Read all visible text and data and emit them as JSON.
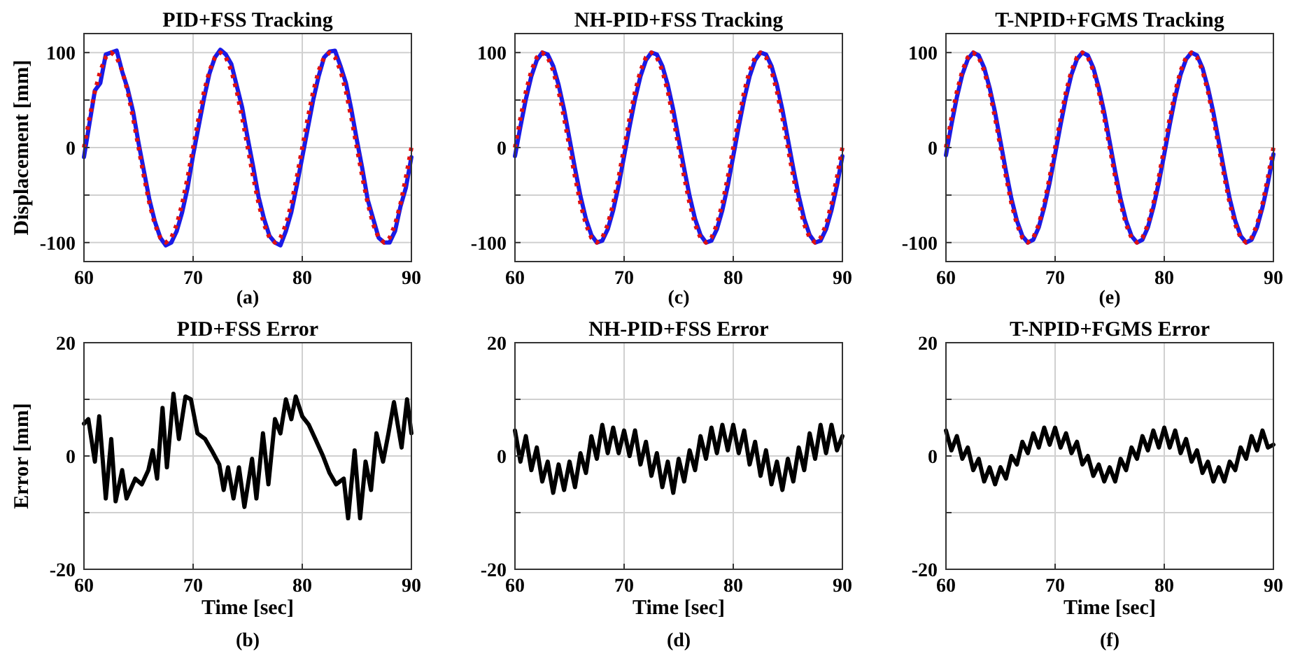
{
  "chart_data": [
    {
      "type": "line",
      "title": "PID+FSS Tracking",
      "ylabel": "Displacement [mm]",
      "annotations": [
        "(a)"
      ],
      "xlim": [
        60,
        90
      ],
      "xticks": [
        60,
        70,
        80,
        90
      ],
      "ylim": [
        -120,
        120
      ],
      "yticks": [
        -100,
        {
          "value": -50,
          "label": null
        },
        0,
        {
          "value": 50,
          "label": null
        },
        100
      ],
      "grid": true,
      "x": [
        60,
        60.5,
        61,
        61.5,
        62,
        62.5,
        63,
        63.5,
        64,
        64.5,
        65,
        65.5,
        66,
        66.5,
        67,
        67.5,
        68,
        68.5,
        69,
        69.5,
        70,
        70.5,
        71,
        71.5,
        72,
        72.5,
        73,
        73.5,
        74,
        74.5,
        75,
        75.5,
        76,
        76.5,
        77,
        77.5,
        78,
        78.5,
        79,
        79.5,
        80,
        80.5,
        81,
        81.5,
        82,
        82.5,
        83,
        83.5,
        84,
        84.5,
        85,
        85.5,
        86,
        86.5,
        87,
        87.5,
        88,
        88.5,
        89,
        89.5,
        90
      ],
      "series": [
        {
          "color": "#e01010",
          "line_style": "dotted",
          "values": [
            0,
            31,
            59,
            81,
            95,
            100,
            95,
            81,
            59,
            31,
            0,
            -31,
            -59,
            -81,
            -95,
            -100,
            -95,
            -81,
            -59,
            -31,
            0,
            31,
            59,
            81,
            95,
            100,
            95,
            81,
            59,
            31,
            0,
            -31,
            -59,
            -81,
            -95,
            -100,
            -95,
            -81,
            -59,
            -31,
            0,
            31,
            59,
            81,
            95,
            100,
            95,
            81,
            59,
            31,
            0,
            -31,
            -59,
            -81,
            -95,
            -100,
            -95,
            -81,
            -59,
            -31,
            0
          ]
        },
        {
          "color": "#1a1ae6",
          "line_style": "solid",
          "values": [
            -10,
            25,
            60,
            68,
            98,
            100,
            102,
            80,
            62,
            38,
            5,
            -25,
            -55,
            -78,
            -95,
            -103,
            -100,
            -88,
            -68,
            -42,
            -8,
            22,
            52,
            78,
            95,
            103,
            98,
            88,
            65,
            42,
            10,
            -20,
            -52,
            -75,
            -93,
            -100,
            -103,
            -88,
            -68,
            -40,
            -10,
            20,
            50,
            75,
            95,
            101,
            102,
            86,
            68,
            40,
            8,
            -22,
            -55,
            -75,
            -95,
            -100,
            -100,
            -88,
            -62,
            -42,
            -10
          ]
        }
      ]
    },
    {
      "type": "line",
      "title": "NH-PID+FSS Tracking",
      "annotations": [
        "(c)"
      ],
      "xlim": [
        60,
        90
      ],
      "xticks": [
        60,
        70,
        80,
        90
      ],
      "ylim": [
        -120,
        120
      ],
      "yticks": [
        -100,
        {
          "value": -50,
          "label": null
        },
        0,
        {
          "value": 50,
          "label": null
        },
        100
      ],
      "grid": true,
      "x": [
        60,
        60.5,
        61,
        61.5,
        62,
        62.5,
        63,
        63.5,
        64,
        64.5,
        65,
        65.5,
        66,
        66.5,
        67,
        67.5,
        68,
        68.5,
        69,
        69.5,
        70,
        70.5,
        71,
        71.5,
        72,
        72.5,
        73,
        73.5,
        74,
        74.5,
        75,
        75.5,
        76,
        76.5,
        77,
        77.5,
        78,
        78.5,
        79,
        79.5,
        80,
        80.5,
        81,
        81.5,
        82,
        82.5,
        83,
        83.5,
        84,
        84.5,
        85,
        85.5,
        86,
        86.5,
        87,
        87.5,
        88,
        88.5,
        89,
        89.5,
        90
      ],
      "series": [
        {
          "color": "#e01010",
          "line_style": "dotted",
          "values": [
            0,
            31,
            59,
            81,
            95,
            100,
            95,
            81,
            59,
            31,
            0,
            -31,
            -59,
            -81,
            -95,
            -100,
            -95,
            -81,
            -59,
            -31,
            0,
            31,
            59,
            81,
            95,
            100,
            95,
            81,
            59,
            31,
            0,
            -31,
            -59,
            -81,
            -95,
            -100,
            -95,
            -81,
            -59,
            -31,
            0,
            31,
            59,
            81,
            95,
            100,
            95,
            81,
            59,
            31,
            0,
            -31,
            -59,
            -81,
            -95,
            -100,
            -95,
            -81,
            -59,
            -31,
            0
          ]
        },
        {
          "color": "#1a1ae6",
          "line_style": "solid",
          "values": [
            -9,
            22,
            51,
            75,
            92,
            100,
            98,
            86,
            66,
            40,
            9,
            -22,
            -51,
            -75,
            -92,
            -100,
            -98,
            -86,
            -66,
            -40,
            -9,
            22,
            51,
            75,
            92,
            100,
            98,
            86,
            66,
            40,
            9,
            -22,
            -51,
            -75,
            -92,
            -100,
            -98,
            -86,
            -66,
            -40,
            -9,
            22,
            51,
            75,
            92,
            100,
            98,
            86,
            66,
            40,
            9,
            -22,
            -51,
            -75,
            -92,
            -100,
            -98,
            -86,
            -66,
            -40,
            -9
          ]
        }
      ]
    },
    {
      "type": "line",
      "title": "T-NPID+FGMS Tracking",
      "annotations": [
        "(e)"
      ],
      "xlim": [
        60,
        90
      ],
      "xticks": [
        60,
        70,
        80,
        90
      ],
      "ylim": [
        -120,
        120
      ],
      "yticks": [
        -100,
        {
          "value": -50,
          "label": null
        },
        0,
        {
          "value": 50,
          "label": null
        },
        100
      ],
      "grid": true,
      "x": [
        60,
        60.5,
        61,
        61.5,
        62,
        62.5,
        63,
        63.5,
        64,
        64.5,
        65,
        65.5,
        66,
        66.5,
        67,
        67.5,
        68,
        68.5,
        69,
        69.5,
        70,
        70.5,
        71,
        71.5,
        72,
        72.5,
        73,
        73.5,
        74,
        74.5,
        75,
        75.5,
        76,
        76.5,
        77,
        77.5,
        78,
        78.5,
        79,
        79.5,
        80,
        80.5,
        81,
        81.5,
        82,
        82.5,
        83,
        83.5,
        84,
        84.5,
        85,
        85.5,
        86,
        86.5,
        87,
        87.5,
        88,
        88.5,
        89,
        89.5,
        90
      ],
      "series": [
        {
          "color": "#e01010",
          "line_style": "dotted",
          "values": [
            0,
            31,
            59,
            81,
            95,
            100,
            95,
            81,
            59,
            31,
            0,
            -31,
            -59,
            -81,
            -95,
            -100,
            -95,
            -81,
            -59,
            -31,
            0,
            31,
            59,
            81,
            95,
            100,
            95,
            81,
            59,
            31,
            0,
            -31,
            -59,
            -81,
            -95,
            -100,
            -95,
            -81,
            -59,
            -31,
            0,
            31,
            59,
            81,
            95,
            100,
            95,
            81,
            59,
            31,
            0,
            -31,
            -59,
            -81,
            -95,
            -100,
            -95,
            -81,
            -59,
            -31,
            0
          ]
        },
        {
          "color": "#1a1ae6",
          "line_style": "solid",
          "values": [
            -8,
            24,
            53,
            77,
            93,
            100,
            97,
            84,
            63,
            37,
            6,
            -25,
            -54,
            -77,
            -93,
            -100,
            -97,
            -84,
            -63,
            -37,
            -7,
            24,
            53,
            77,
            93,
            100,
            97,
            84,
            63,
            37,
            6,
            -25,
            -54,
            -77,
            -93,
            -100,
            -97,
            -84,
            -63,
            -37,
            -7,
            24,
            53,
            77,
            93,
            100,
            97,
            84,
            63,
            37,
            6,
            -25,
            -54,
            -77,
            -93,
            -100,
            -97,
            -84,
            -63,
            -37,
            -7
          ]
        }
      ]
    },
    {
      "type": "line",
      "title": "PID+FSS Error",
      "xlabel": "Time [sec]",
      "ylabel": "Error [mm]",
      "annotations": [
        "(b)"
      ],
      "xlim": [
        60,
        90
      ],
      "xticks": [
        60,
        70,
        80,
        90
      ],
      "ylim": [
        -20,
        20
      ],
      "yticks": [
        -20,
        {
          "value": -10,
          "label": null
        },
        0,
        {
          "value": 10,
          "label": null
        },
        20
      ],
      "grid": true,
      "x": [
        60,
        60.4,
        61,
        61.4,
        62,
        62.5,
        62.9,
        63.5,
        63.9,
        64.7,
        65.3,
        65.9,
        66.3,
        66.7,
        67.2,
        67.6,
        68.2,
        68.7,
        69.3,
        69.8,
        70.4,
        71.1,
        71.7,
        72.4,
        72.8,
        73.2,
        73.7,
        74.2,
        74.7,
        75.4,
        75.8,
        76.4,
        76.9,
        77.5,
        78,
        78.5,
        79,
        79.4,
        80,
        80.6,
        81.2,
        81.9,
        82.5,
        83.1,
        83.8,
        84.2,
        84.8,
        85.3,
        85.8,
        86.3,
        86.8,
        87.4,
        87.9,
        88.4,
        89.1,
        89.6,
        90
      ],
      "series": [
        {
          "color": "#000000",
          "line_style": "solid",
          "values": [
            5.7,
            6.5,
            -1,
            7,
            -7.5,
            3,
            -8,
            -2.5,
            -7.5,
            -4,
            -5,
            -2.5,
            1,
            -4,
            8.5,
            -2,
            11,
            3,
            10.5,
            10,
            4,
            3,
            1,
            -1.5,
            -6,
            -2,
            -7.5,
            -2,
            -9,
            -0.5,
            -7.5,
            4,
            -5,
            6.5,
            4,
            10,
            6.5,
            10.5,
            7,
            5.5,
            3,
            0,
            -3,
            -5,
            -4,
            -11,
            1,
            -11,
            -1,
            -6,
            4,
            -1,
            4,
            9.5,
            1.5,
            10,
            4
          ]
        }
      ]
    },
    {
      "type": "line",
      "title": "NH-PID+FSS Error",
      "xlabel": "Time [sec]",
      "annotations": [
        "(d)"
      ],
      "xlim": [
        60,
        90
      ],
      "xticks": [
        60,
        70,
        80,
        90
      ],
      "ylim": [
        -20,
        20
      ],
      "yticks": [
        -20,
        {
          "value": -10,
          "label": null
        },
        0,
        {
          "value": 10,
          "label": null
        },
        20
      ],
      "grid": true,
      "x": [
        60,
        60.5,
        61,
        61.5,
        62,
        62.5,
        63,
        63.5,
        64,
        64.5,
        65,
        65.5,
        66,
        66.5,
        67,
        67.5,
        68,
        68.5,
        69,
        69.5,
        70,
        70.5,
        71,
        71.5,
        72,
        72.5,
        73,
        73.5,
        74,
        74.5,
        75,
        75.5,
        76,
        76.5,
        77,
        77.5,
        78,
        78.5,
        79,
        79.5,
        80,
        80.5,
        81,
        81.5,
        82,
        82.5,
        83,
        83.5,
        84,
        84.5,
        85,
        85.5,
        86,
        86.5,
        87,
        87.5,
        88,
        88.5,
        89,
        89.5,
        90
      ],
      "series": [
        {
          "color": "#000000",
          "line_style": "solid",
          "values": [
            4.5,
            -1,
            3.5,
            -2.5,
            1.5,
            -4.5,
            -1,
            -6.5,
            -1.5,
            -6,
            -1,
            -5.5,
            0.5,
            -3,
            3.5,
            -0.5,
            5.5,
            0.5,
            5,
            0.5,
            4.5,
            0,
            4.5,
            -1.5,
            2.5,
            -3.5,
            0.5,
            -5.5,
            -1,
            -6.5,
            -0.5,
            -4.5,
            1,
            -2.5,
            3.5,
            -0.5,
            5,
            0.5,
            5.5,
            1,
            5.5,
            0.5,
            4.5,
            -1.5,
            2.5,
            -3.5,
            1,
            -5,
            -1,
            -6,
            -0.5,
            -4.5,
            1.5,
            -2.5,
            4,
            -0.5,
            5.5,
            0.5,
            5.5,
            1,
            3.5
          ]
        }
      ]
    },
    {
      "type": "line",
      "title": "T-NPID+FGMS Error",
      "xlabel": "Time [sec]",
      "annotations": [
        "(f)"
      ],
      "xlim": [
        60,
        90
      ],
      "xticks": [
        60,
        70,
        80,
        90
      ],
      "ylim": [
        -20,
        20
      ],
      "yticks": [
        -20,
        {
          "value": -10,
          "label": null
        },
        0,
        {
          "value": 10,
          "label": null
        },
        20
      ],
      "grid": true,
      "x": [
        60,
        60.5,
        61,
        61.5,
        62,
        62.5,
        63,
        63.5,
        64,
        64.5,
        65,
        65.5,
        66,
        66.5,
        67,
        67.5,
        68,
        68.5,
        69,
        69.5,
        70,
        70.5,
        71,
        71.5,
        72,
        72.5,
        73,
        73.5,
        74,
        74.5,
        75,
        75.5,
        76,
        76.5,
        77,
        77.5,
        78,
        78.5,
        79,
        79.5,
        80,
        80.5,
        81,
        81.5,
        82,
        82.5,
        83,
        83.5,
        84,
        84.5,
        85,
        85.5,
        86,
        86.5,
        87,
        87.5,
        88,
        88.5,
        89,
        89.5,
        90
      ],
      "series": [
        {
          "color": "#000000",
          "line_style": "solid",
          "values": [
            4.5,
            1,
            3.5,
            -0.5,
            1.5,
            -2.5,
            -0.5,
            -4.5,
            -2,
            -5,
            -2,
            -4,
            0,
            -1.5,
            2.5,
            0.5,
            4,
            1.5,
            5,
            2,
            5,
            1.5,
            4,
            0.5,
            2.5,
            -1.5,
            0,
            -3.5,
            -1.5,
            -4.5,
            -2,
            -4.5,
            -0.5,
            -2.5,
            1.5,
            -0.5,
            3.5,
            1,
            4.5,
            1.5,
            5,
            1.5,
            4.5,
            0.5,
            3,
            -1,
            1,
            -3,
            -1,
            -4.5,
            -2,
            -4.5,
            -1,
            -2.5,
            1.5,
            -0.5,
            3.5,
            1,
            4.5,
            1.5,
            2
          ]
        }
      ]
    }
  ]
}
